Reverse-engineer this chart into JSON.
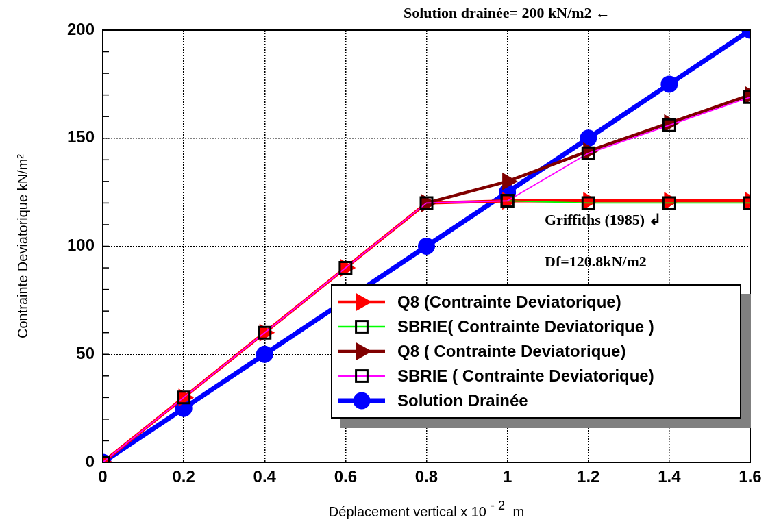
{
  "chart_data": {
    "type": "line",
    "xlabel": "Déplacement vertical x 10$^{- 2}$ m",
    "ylabel": "Contrainte Deviatorique kN/m²",
    "annotations": [
      "Solution drainée= 200 kN/m2 ←",
      "Griffiths (1985) ↲",
      "Df=120.8kN/m2"
    ],
    "x": [
      0,
      0.2,
      0.4,
      0.6,
      0.8,
      1,
      1.2,
      1.4,
      1.6
    ],
    "xlim": [
      0,
      1.6
    ],
    "xticks": [
      0,
      0.2,
      0.4,
      0.6,
      0.8,
      1,
      1.2,
      1.4,
      1.6
    ],
    "ylim": [
      0,
      200
    ],
    "yticks": [
      0,
      {
        "value": 10,
        "label": null
      },
      {
        "value": 20,
        "label": null
      },
      {
        "value": 30,
        "label": null
      },
      {
        "value": 40,
        "label": null
      },
      50,
      {
        "value": 60,
        "label": null
      },
      {
        "value": 70,
        "label": null
      },
      {
        "value": 80,
        "label": null
      },
      {
        "value": 90,
        "label": null
      },
      100,
      {
        "value": 110,
        "label": null
      },
      {
        "value": 120,
        "label": null
      },
      {
        "value": 130,
        "label": null
      },
      {
        "value": 140,
        "label": null
      },
      150,
      {
        "value": 160,
        "label": null
      },
      {
        "value": 170,
        "label": null
      },
      {
        "value": 180,
        "label": null
      },
      {
        "value": 190,
        "label": null
      },
      200
    ],
    "grid": true,
    "legend": "bottom right",
    "line_style": "solid",
    "series": [
      {
        "name": "Solution Drainée",
        "color": "#0000ff",
        "marker": "circle",
        "values": [
          0,
          25,
          50,
          null,
          100,
          125,
          150,
          175,
          200
        ]
      },
      {
        "name": "Q8 (Contrainte Deviatorique)",
        "color": "#ff0000",
        "marker": "triangle",
        "values": [
          0,
          30,
          60,
          90,
          120,
          121,
          121,
          121,
          121
        ]
      },
      {
        "name": "SBRIE( Contrainte Deviatorique )",
        "color": "#00ff00",
        "marker": "square",
        "values": [
          null,
          null,
          null,
          null,
          null,
          121,
          120,
          120,
          120
        ]
      },
      {
        "name": "Q8 ( Contrainte Deviatorique)",
        "color": "#800000",
        "marker": "triangle",
        "values": [
          null,
          null,
          null,
          null,
          120,
          130,
          144,
          157,
          170
        ]
      },
      {
        "name": "SBRIE ( Contrainte Deviatorique)",
        "color": "#ff00ff",
        "marker": "square",
        "values": [
          0,
          30,
          60,
          90,
          120,
          121,
          143,
          156,
          169
        ]
      }
    ]
  }
}
